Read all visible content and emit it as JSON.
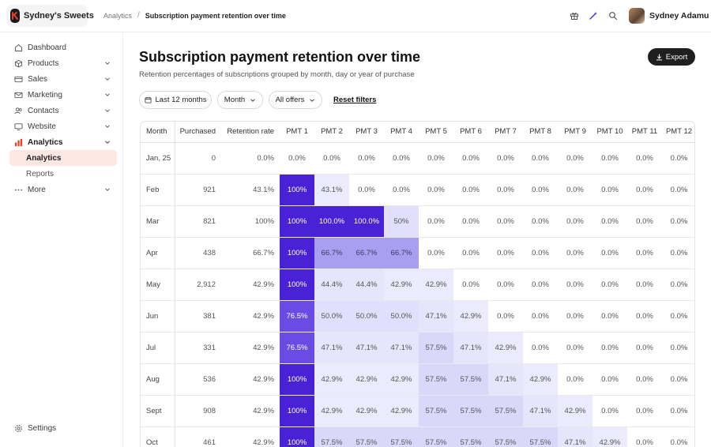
{
  "brand": {
    "name": "Sydney's Sweets"
  },
  "breadcrumb": {
    "parent": "Analytics",
    "separator": "/",
    "current": "Subscription payment retention over time"
  },
  "user": {
    "name": "Sydney Adamu"
  },
  "sidebar": {
    "items": [
      {
        "key": "dashboard",
        "label": "Dashboard",
        "icon": "home-icon",
        "chevron": false
      },
      {
        "key": "products",
        "label": "Products",
        "icon": "box-icon",
        "chevron": true
      },
      {
        "key": "sales",
        "label": "Sales",
        "icon": "card-icon",
        "chevron": true
      },
      {
        "key": "marketing",
        "label": "Marketing",
        "icon": "mail-icon",
        "chevron": true
      },
      {
        "key": "contacts",
        "label": "Contacts",
        "icon": "people-icon",
        "chevron": true
      },
      {
        "key": "website",
        "label": "Website",
        "icon": "monitor-icon",
        "chevron": true
      },
      {
        "key": "analytics",
        "label": "Analytics",
        "icon": "chart-icon",
        "chevron": true
      }
    ],
    "sub_items": [
      {
        "key": "analytics",
        "label": "Analytics",
        "selected": true
      },
      {
        "key": "reports",
        "label": "Reports",
        "selected": false
      }
    ],
    "more": {
      "label": "More",
      "icon": "dots-icon"
    },
    "settings": {
      "label": "Settings",
      "icon": "gear-icon"
    }
  },
  "page": {
    "title": "Subscription payment retention over time",
    "subtitle": "Retention percentages of subscriptions grouped by month, day or year of purchase"
  },
  "toolbar": {
    "export_label": "Export",
    "date_filter": "Last 12 months",
    "group_filter": "Month",
    "offer_filter": "All offers",
    "reset_label": "Reset filters"
  },
  "colors": {
    "accent": "#4a22d6",
    "brand": "#e8402a",
    "selected_nav_bg": "#fde7e3"
  },
  "table": {
    "headers": [
      "Month",
      "Purchased",
      "Retention rate",
      "PMT 1",
      "PMT 2",
      "PMT 3",
      "PMT 4",
      "PMT 5",
      "PMT 6",
      "PMT 7",
      "PMT 8",
      "PMT 9",
      "PMT 10",
      "PMT 11",
      "PMT 12"
    ],
    "rows": [
      {
        "month": "Jan, 25",
        "purchased": "0",
        "rate": "0.0%",
        "pmts": [
          "0.0%",
          "0.0%",
          "0.0%",
          "0.0%",
          "0.0%",
          "0.0%",
          "0.0%",
          "0.0%",
          "0.0%",
          "0.0%",
          "0.0%",
          "0.0%"
        ]
      },
      {
        "month": "Feb",
        "purchased": "921",
        "rate": "43.1%",
        "pmts": [
          "100%",
          "43.1%",
          "0.0%",
          "0.0%",
          "0.0%",
          "0.0%",
          "0.0%",
          "0.0%",
          "0.0%",
          "0.0%",
          "0.0%",
          "0.0%"
        ]
      },
      {
        "month": "Mar",
        "purchased": "821",
        "rate": "100%",
        "pmts": [
          "100%",
          "100.0%",
          "100.0%",
          "50%",
          "0.0%",
          "0.0%",
          "0.0%",
          "0.0%",
          "0.0%",
          "0.0%",
          "0.0%",
          "0.0%"
        ]
      },
      {
        "month": "Apr",
        "purchased": "438",
        "rate": "66.7%",
        "pmts": [
          "100%",
          "66.7%",
          "66.7%",
          "66.7%",
          "0.0%",
          "0.0%",
          "0.0%",
          "0.0%",
          "0.0%",
          "0.0%",
          "0.0%",
          "0.0%"
        ]
      },
      {
        "month": "May",
        "purchased": "2,912",
        "rate": "42.9%",
        "pmts": [
          "100%",
          "44.4%",
          "44.4%",
          "42.9%",
          "42.9%",
          "0.0%",
          "0.0%",
          "0.0%",
          "0.0%",
          "0.0%",
          "0.0%",
          "0.0%"
        ]
      },
      {
        "month": "Jun",
        "purchased": "381",
        "rate": "42.9%",
        "pmts": [
          "76.5%",
          "50.0%",
          "50.0%",
          "50.0%",
          "47.1%",
          "42.9%",
          "0.0%",
          "0.0%",
          "0.0%",
          "0.0%",
          "0.0%",
          "0.0%"
        ]
      },
      {
        "month": "Jul",
        "purchased": "331",
        "rate": "42.9%",
        "pmts": [
          "76.5%",
          "47.1%",
          "47.1%",
          "47.1%",
          "57.5%",
          "47.1%",
          "42.9%",
          "0.0%",
          "0.0%",
          "0.0%",
          "0.0%",
          "0.0%"
        ]
      },
      {
        "month": "Aug",
        "purchased": "536",
        "rate": "42.9%",
        "pmts": [
          "100%",
          "42.9%",
          "42.9%",
          "42.9%",
          "57.5%",
          "57.5%",
          "47.1%",
          "42.9%",
          "0.0%",
          "0.0%",
          "0.0%",
          "0.0%"
        ]
      },
      {
        "month": "Sept",
        "purchased": "908",
        "rate": "42.9%",
        "pmts": [
          "100%",
          "42.9%",
          "42.9%",
          "42.9%",
          "57.5%",
          "57.5%",
          "57.5%",
          "47.1%",
          "42.9%",
          "0.0%",
          "0.0%",
          "0.0%"
        ]
      },
      {
        "month": "Oct",
        "purchased": "461",
        "rate": "42.9%",
        "pmts": [
          "100%",
          "57.5%",
          "57.5%",
          "57.5%",
          "57.5%",
          "57.5%",
          "57.5%",
          "57.5%",
          "47.1%",
          "42.9%",
          "0.0%",
          "0.0%"
        ]
      }
    ]
  }
}
